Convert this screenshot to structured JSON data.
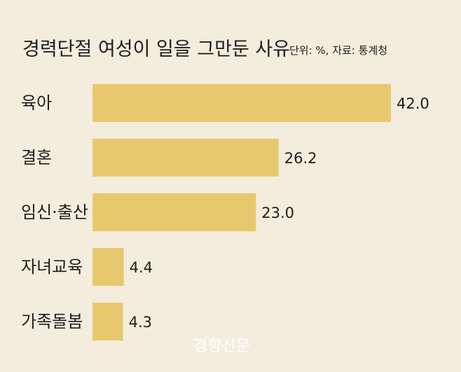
{
  "chart_data": {
    "type": "bar",
    "orientation": "horizontal",
    "title": "경력단절 여성이 일을 그만둔 사유",
    "note": "단위: %, 자료: 통계청",
    "categories": [
      "육아",
      "결혼",
      "임신·출산",
      "자녀교육",
      "가족돌봄"
    ],
    "values": [
      42.0,
      26.2,
      23.0,
      4.4,
      4.3
    ],
    "value_labels": [
      "42.0",
      "26.2",
      "23.0",
      "4.4",
      "4.3"
    ],
    "xlim": [
      0,
      42.0
    ],
    "grid": false,
    "legend": "none",
    "bar_color": "#e8c86e",
    "background_color": "#f4ecdc"
  },
  "watermark": "경향신문"
}
